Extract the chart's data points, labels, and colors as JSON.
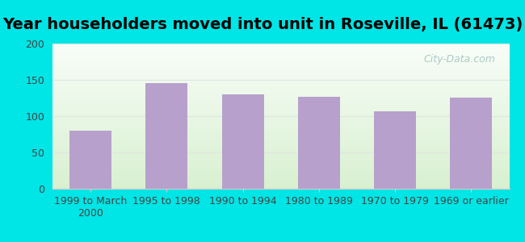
{
  "title": "Year householders moved into unit in Roseville, IL (61473)",
  "categories": [
    "1999 to March\n2000",
    "1995 to 1998",
    "1990 to 1994",
    "1980 to 1989",
    "1970 to 1979",
    "1969 or earlier"
  ],
  "values": [
    80,
    146,
    130,
    127,
    107,
    126
  ],
  "bar_color": "#b8a0cc",
  "background_outer": "#00e5e5",
  "background_inner_top": "#f8fdf8",
  "background_inner_bottom": "#d8f0d0",
  "ylim": [
    0,
    200
  ],
  "yticks": [
    0,
    50,
    100,
    150,
    200
  ],
  "title_fontsize": 14,
  "tick_fontsize": 9,
  "watermark": "City-Data.com",
  "grid_color": "#e0e8e0",
  "spine_color": "#cccccc"
}
